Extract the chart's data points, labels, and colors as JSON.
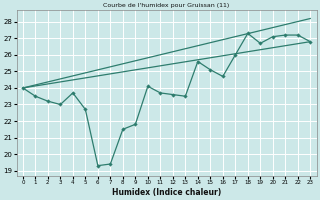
{
  "title": "Courbe de l'humidex pour Gruissan (11)",
  "xlabel": "Humidex (Indice chaleur)",
  "bg_color": "#cce8e8",
  "grid_color": "#ffffff",
  "line_color": "#2e7d6e",
  "xlim": [
    -0.5,
    23.5
  ],
  "ylim": [
    18.7,
    28.7
  ],
  "xticks": [
    0,
    1,
    2,
    3,
    4,
    5,
    6,
    7,
    8,
    9,
    10,
    11,
    12,
    13,
    14,
    15,
    16,
    17,
    18,
    19,
    20,
    21,
    22,
    23
  ],
  "yticks": [
    19,
    20,
    21,
    22,
    23,
    24,
    25,
    26,
    27,
    28
  ],
  "line1_x": [
    0,
    1,
    2,
    3,
    4,
    5,
    6,
    7,
    8,
    9,
    10,
    11,
    12,
    13,
    14,
    15,
    16,
    17,
    18,
    19,
    20,
    21,
    22,
    23
  ],
  "line1_y": [
    24.0,
    23.5,
    23.2,
    23.0,
    23.7,
    22.7,
    19.3,
    19.4,
    21.5,
    21.8,
    24.1,
    23.7,
    23.6,
    23.5,
    25.6,
    25.1,
    24.7,
    26.0,
    27.3,
    26.7,
    27.1,
    27.2,
    27.2,
    26.8
  ],
  "trend_low": [
    24.0,
    26.8
  ],
  "trend_high": [
    24.0,
    28.2
  ],
  "trend_x": [
    0,
    23
  ]
}
